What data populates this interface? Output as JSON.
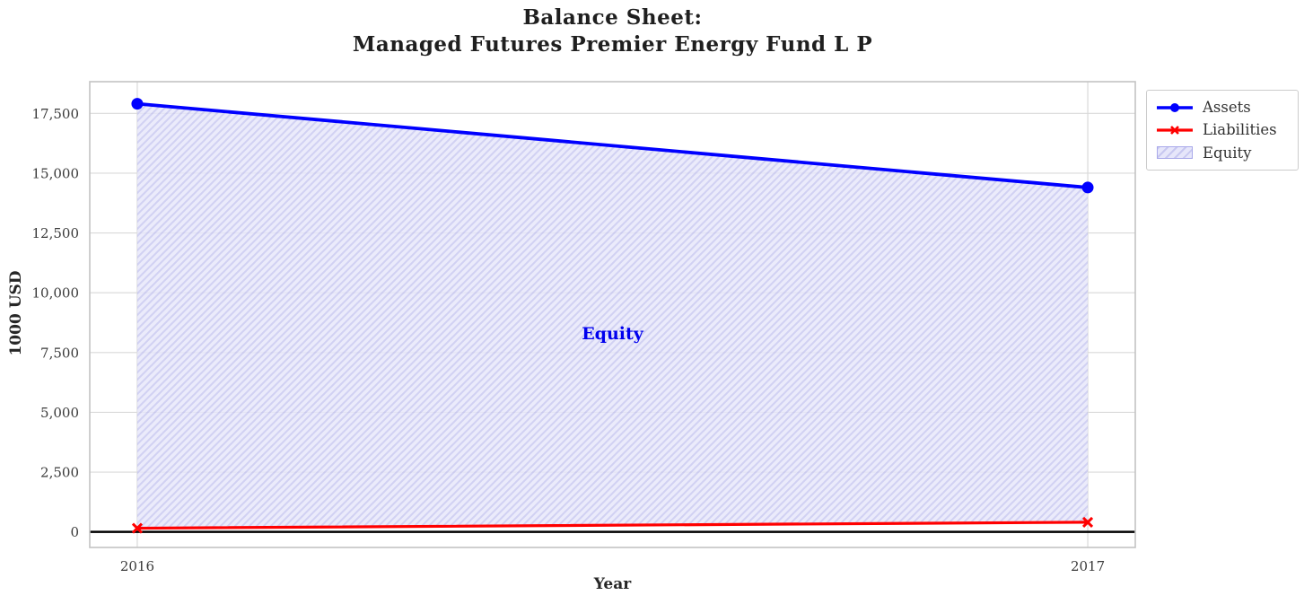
{
  "title": {
    "line1": "Balance Sheet:",
    "line2": "Managed Futures Premier Energy Fund L P"
  },
  "chart_data": {
    "type": "area",
    "title": "Balance Sheet:\nManaged Futures Premier Energy Fund L P",
    "xlabel": "Year",
    "ylabel": "1000 USD",
    "x": [
      2016,
      2017
    ],
    "series": [
      {
        "name": "Assets",
        "values": [
          17900,
          14400
        ],
        "color": "#0000ff",
        "marker": "circle",
        "line_width": 3.8
      },
      {
        "name": "Liabilities",
        "values": [
          155,
          405
        ],
        "color": "#ff0000",
        "marker": "x",
        "line_width": 3.2
      }
    ],
    "area": {
      "name": "Equity",
      "between": [
        "Liabilities",
        "Assets"
      ],
      "values": [
        17745,
        13995
      ],
      "fill": "#e6e6fa",
      "hatch_color": "#c7c7f0",
      "edge_color": "#a9a9ea",
      "label": "Equity",
      "label_color": "#0000ee",
      "label_x": 2016.5,
      "label_y": 8280
    },
    "x_ticks": [
      {
        "value": 2016,
        "label": "2016"
      },
      {
        "value": 2017,
        "label": "2017"
      }
    ],
    "y_ticks": [
      {
        "value": 0,
        "label": "0"
      },
      {
        "value": 2500,
        "label": "2,500"
      },
      {
        "value": 5000,
        "label": "5,000"
      },
      {
        "value": 7500,
        "label": "7,500"
      },
      {
        "value": 10000,
        "label": "10,000"
      },
      {
        "value": 12500,
        "label": "12,500"
      },
      {
        "value": 15000,
        "label": "15,000"
      },
      {
        "value": 17500,
        "label": "17,500"
      }
    ],
    "xlim": [
      2015.95,
      2017.05
    ],
    "ylim": [
      -650,
      18825
    ],
    "grid": true,
    "zero_line": true,
    "legend": {
      "position": "upper-right-outside",
      "entries": [
        "Assets",
        "Liabilities",
        "Equity"
      ]
    },
    "style": {
      "grid_color": "#d9d9d9",
      "border_color": "#c3c3c3",
      "tick_color": "#3a3a3a",
      "title_color": "#1f1f1f",
      "zero_line_color": "#000000",
      "background": "#ffffff"
    }
  }
}
